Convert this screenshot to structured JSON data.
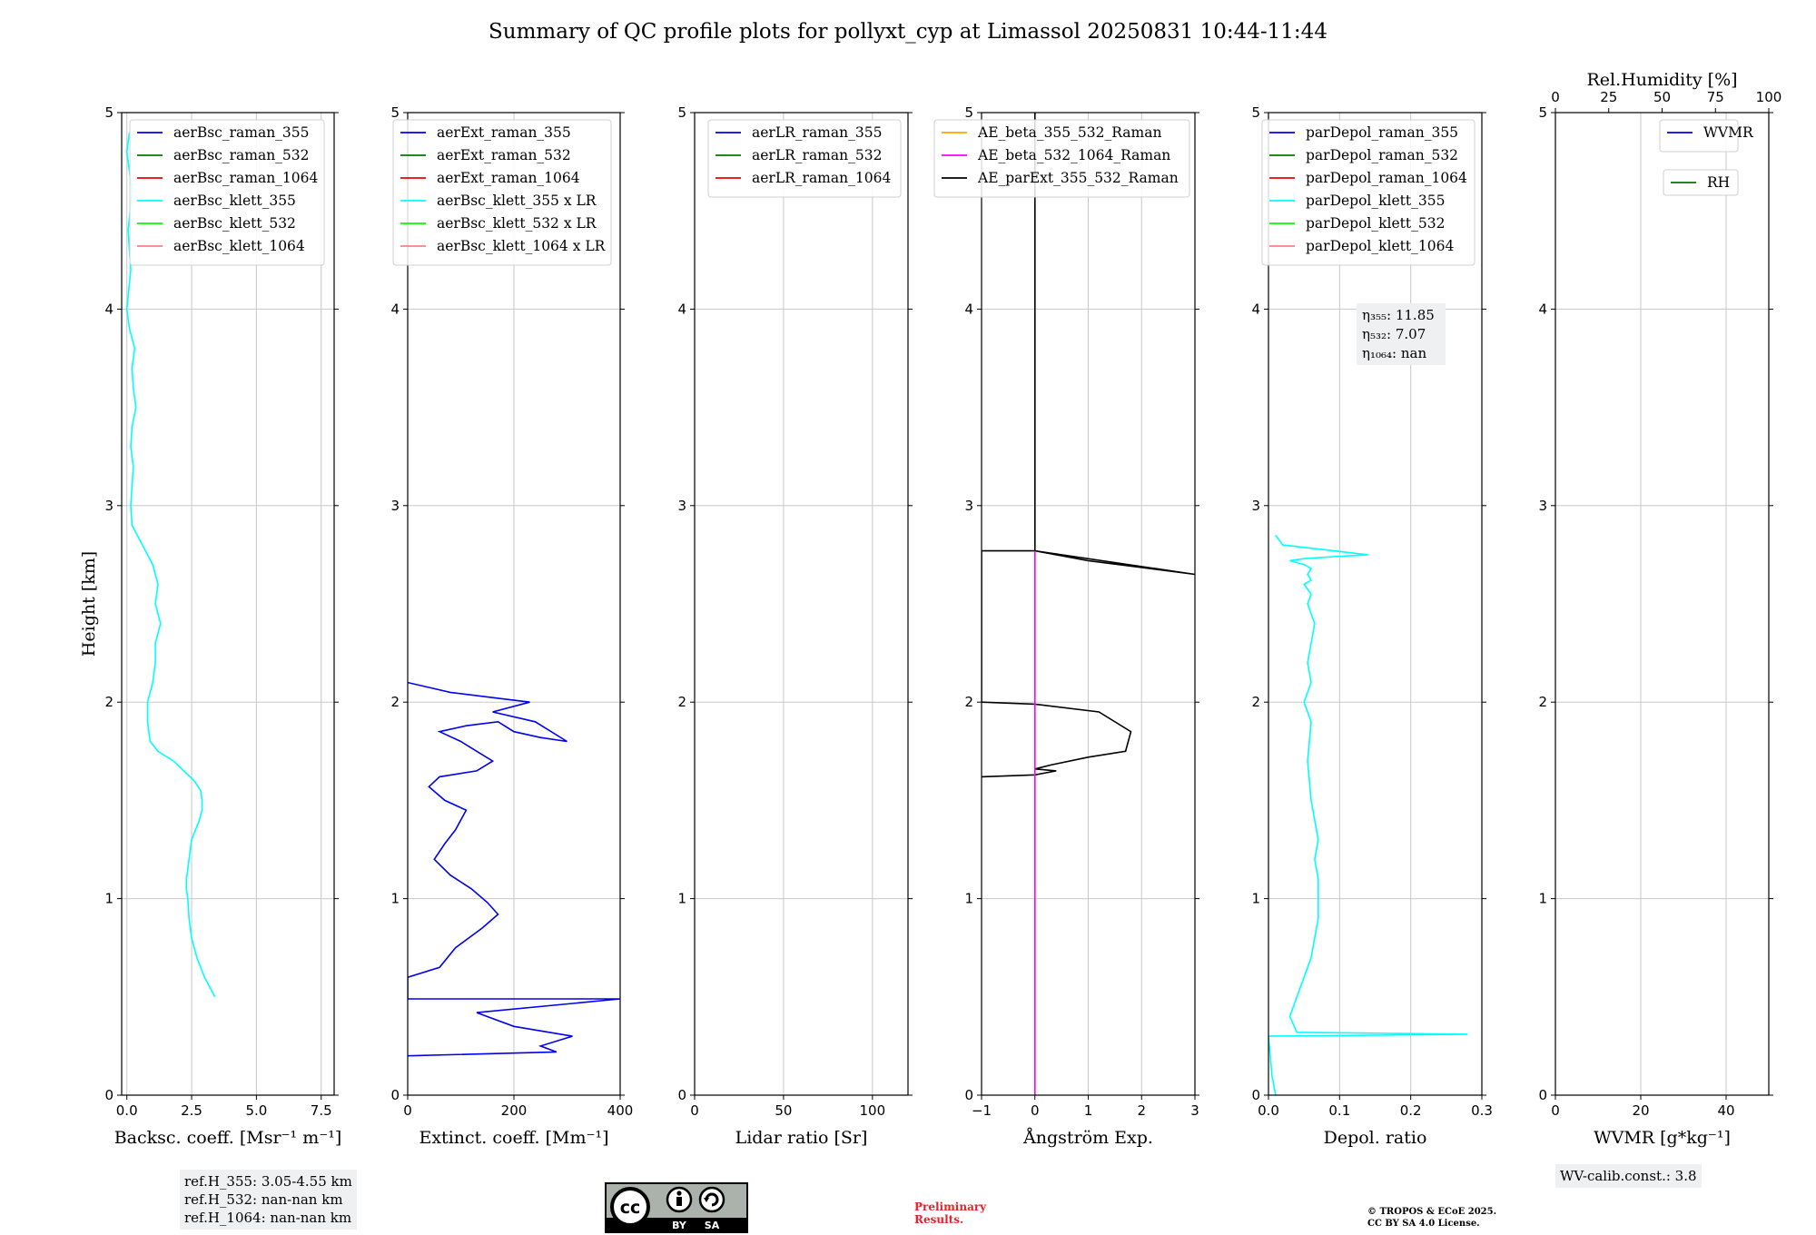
{
  "title": "Summary of QC profile plots for pollyxt_cyp at Limassol 20250831 10:44-11:44",
  "chart_data": [
    {
      "type": "line",
      "id": "bsc",
      "xlabel": "Backsc. coeff. [Msr⁻¹ m⁻¹]",
      "ylabel": "Height [km]",
      "xlim": [
        -0.2,
        8.0
      ],
      "ylim": [
        0,
        5
      ],
      "xticks": [
        0,
        2.5,
        5,
        7.5
      ],
      "xtick_labels": [
        "0.0",
        "2.5",
        "5.0",
        "7.5"
      ],
      "yticks": [
        0,
        1,
        2,
        3,
        4,
        5
      ],
      "ytick_labels": [
        "0",
        "1",
        "2",
        "3",
        "4",
        "5"
      ],
      "grid": true,
      "legend": [
        "aerBsc_raman_355",
        "aerBsc_raman_532",
        "aerBsc_raman_1064",
        "aerBsc_klett_355",
        "aerBsc_klett_532",
        "aerBsc_klett_1064"
      ],
      "series": [
        {
          "name": "aerBsc_klett_355",
          "color": "#00ffff",
          "x": [
            3.4,
            3.0,
            2.7,
            2.5,
            2.4,
            2.35,
            2.3,
            2.3,
            2.35,
            2.4,
            2.5,
            2.8,
            2.9,
            2.9,
            2.85,
            2.6,
            2.2,
            1.8,
            1.2,
            0.9,
            0.8,
            0.8,
            0.9,
            1.0,
            1.1,
            1.1,
            1.3,
            1.1,
            1.2,
            1.1,
            1.0,
            0.6,
            0.2,
            0.15,
            0.2,
            0.25,
            0.15,
            0.2,
            0.35,
            0.25,
            0.2,
            0.3,
            0.1,
            0.0,
            0.15,
            0.05,
            0.2,
            0.0,
            0.1
          ],
          "y": [
            0.5,
            0.6,
            0.7,
            0.8,
            0.9,
            1.0,
            1.05,
            1.1,
            1.15,
            1.2,
            1.3,
            1.4,
            1.45,
            1.5,
            1.55,
            1.6,
            1.65,
            1.7,
            1.75,
            1.8,
            1.9,
            2.0,
            2.05,
            2.1,
            2.2,
            2.3,
            2.4,
            2.5,
            2.6,
            2.65,
            2.7,
            2.8,
            2.9,
            3.0,
            3.1,
            3.2,
            3.3,
            3.4,
            3.5,
            3.6,
            3.7,
            3.8,
            3.9,
            4.0,
            4.2,
            4.4,
            4.6,
            4.8,
            4.9
          ]
        }
      ]
    },
    {
      "type": "line",
      "id": "ext",
      "xlabel": "Extinct. coeff. [Mm⁻¹]",
      "xlim": [
        0,
        400
      ],
      "ylim": [
        0,
        5
      ],
      "xticks": [
        0,
        200,
        400
      ],
      "xtick_labels": [
        "0",
        "200",
        "400"
      ],
      "yticks": [
        0,
        1,
        2,
        3,
        4,
        5
      ],
      "ytick_labels": [
        "0",
        "1",
        "2",
        "3",
        "4",
        "5"
      ],
      "grid": true,
      "legend": [
        "aerExt_raman_355",
        "aerExt_raman_532",
        "aerExt_raman_1064",
        "aerBsc_klett_355 x LR",
        "aerBsc_klett_532 x LR",
        "aerBsc_klett_1064 x LR"
      ],
      "series": [
        {
          "name": "aerExt_raman_355",
          "color": "#0000ee",
          "x": [
            0,
            280,
            250,
            310,
            200,
            130,
            400,
            0,
            0,
            60,
            90,
            140,
            170,
            150,
            120,
            80,
            50,
            70,
            90,
            110,
            70,
            40,
            60,
            130,
            160,
            130,
            100,
            60,
            110,
            170,
            200,
            250,
            300,
            240,
            160,
            230,
            170,
            80,
            0
          ],
          "y": [
            0.2,
            0.22,
            0.25,
            0.3,
            0.35,
            0.42,
            0.49,
            0.49,
            0.6,
            0.65,
            0.75,
            0.85,
            0.92,
            0.98,
            1.05,
            1.12,
            1.2,
            1.28,
            1.35,
            1.45,
            1.5,
            1.57,
            1.62,
            1.65,
            1.7,
            1.75,
            1.8,
            1.85,
            1.88,
            1.9,
            1.85,
            1.82,
            1.8,
            1.9,
            1.95,
            2.0,
            2.02,
            2.05,
            2.1
          ]
        }
      ]
    },
    {
      "type": "line",
      "id": "lr",
      "xlabel": "Lidar ratio [Sr]",
      "xlim": [
        0,
        120
      ],
      "ylim": [
        0,
        5
      ],
      "xticks": [
        0,
        50,
        100
      ],
      "xtick_labels": [
        "0",
        "50",
        "100"
      ],
      "yticks": [
        0,
        1,
        2,
        3,
        4,
        5
      ],
      "ytick_labels": [
        "0",
        "1",
        "2",
        "3",
        "4",
        "5"
      ],
      "grid": true,
      "legend": [
        "aerLR_raman_355",
        "aerLR_raman_532",
        "aerLR_raman_1064"
      ],
      "series": []
    },
    {
      "type": "line",
      "id": "ae",
      "xlabel": "Ångström Exp.",
      "xlim": [
        -1,
        3
      ],
      "ylim": [
        0,
        5
      ],
      "xticks": [
        -1,
        0,
        1,
        2,
        3
      ],
      "xtick_labels": [
        "−1",
        "0",
        "1",
        "2",
        "3"
      ],
      "yticks": [
        0,
        1,
        2,
        3,
        4,
        5
      ],
      "ytick_labels": [
        "0",
        "1",
        "2",
        "3",
        "4",
        "5"
      ],
      "grid": true,
      "legend": [
        "AE_beta_355_532_Raman",
        "AE_beta_532_1064_Raman",
        "AE_parExt_355_532_Raman"
      ],
      "series": [
        {
          "name": "AE_parExt_355_532_Raman",
          "color": "#000000",
          "x": [
            0,
            0,
            3.0,
            1.0,
            0.0,
            -1.0,
            -1.0,
            0.0,
            1.2,
            1.8,
            1.7,
            1.0,
            0.3,
            0.0,
            0.4,
            0.0,
            -1.0
          ],
          "y": [
            5.0,
            2.77,
            2.65,
            2.72,
            2.77,
            2.77,
            2.0,
            1.99,
            1.95,
            1.85,
            1.75,
            1.72,
            1.68,
            1.66,
            1.65,
            1.63,
            1.62
          ]
        },
        {
          "name": "AE_beta_532_1064_Raman",
          "color": "#ff00ff",
          "x": [
            0,
            0
          ],
          "y": [
            0,
            2.77
          ]
        }
      ]
    },
    {
      "type": "line",
      "id": "dep",
      "xlabel": "Depol. ratio",
      "xlim": [
        0,
        0.3
      ],
      "ylim": [
        0,
        5
      ],
      "xticks": [
        0,
        0.1,
        0.2,
        0.3
      ],
      "xtick_labels": [
        "0.0",
        "0.1",
        "0.2",
        "0.3"
      ],
      "yticks": [
        0,
        1,
        2,
        3,
        4,
        5
      ],
      "ytick_labels": [
        "0",
        "1",
        "2",
        "3",
        "4",
        "5"
      ],
      "grid": true,
      "legend": [
        "parDepol_raman_355",
        "parDepol_raman_532",
        "parDepol_raman_1064",
        "parDepol_klett_355",
        "parDepol_klett_532",
        "parDepol_klett_1064"
      ],
      "annotation": [
        "η₃₅₅: 11.85",
        "η₅₃₂: 7.07",
        "η₁₀₆₄: nan"
      ],
      "series": [
        {
          "name": "parDepol_klett_355",
          "color": "#00ffff",
          "x": [
            0.01,
            0.005,
            0.0,
            0.28,
            0.04,
            0.03,
            0.04,
            0.06,
            0.07,
            0.07,
            0.065,
            0.07,
            0.06,
            0.055,
            0.06,
            0.05,
            0.06,
            0.055,
            0.065,
            0.055,
            0.06,
            0.05,
            0.06,
            0.055,
            0.06,
            0.05,
            0.03,
            0.05,
            0.09,
            0.14,
            0.02,
            0.01
          ],
          "y": [
            0.0,
            0.1,
            0.3,
            0.31,
            0.32,
            0.4,
            0.5,
            0.7,
            0.9,
            1.1,
            1.2,
            1.3,
            1.5,
            1.7,
            1.9,
            2.0,
            2.1,
            2.2,
            2.4,
            2.5,
            2.55,
            2.6,
            2.62,
            2.65,
            2.68,
            2.7,
            2.72,
            2.73,
            2.74,
            2.75,
            2.8,
            2.85
          ]
        }
      ]
    },
    {
      "type": "line",
      "id": "wv",
      "xlabel": "WVMR [g*kg⁻¹]",
      "x2label": "Rel.Humidity [%]",
      "xlim": [
        0,
        50
      ],
      "x2lim": [
        0,
        100
      ],
      "ylim": [
        0,
        5
      ],
      "xticks": [
        0,
        20,
        40
      ],
      "xtick_labels": [
        "0",
        "20",
        "40"
      ],
      "x2ticks": [
        0,
        25,
        50,
        75,
        100
      ],
      "x2tick_labels": [
        "0",
        "25",
        "50",
        "75",
        "100"
      ],
      "yticks": [
        0,
        1,
        2,
        3,
        4,
        5
      ],
      "ytick_labels": [
        "0",
        "1",
        "2",
        "3",
        "4",
        "5"
      ],
      "grid": true,
      "legend": [
        "WVMR"
      ],
      "legend2": [
        "RH"
      ],
      "series": []
    }
  ],
  "ref_heights": [
    "ref.H_355: 3.05-4.55 km",
    "ref.H_532: nan-nan km",
    "ref.H_1064: nan-nan km"
  ],
  "wv_calib": "WV-calib.const.: 3.8",
  "preliminary": [
    "Preliminary",
    "Results."
  ],
  "copyright": [
    "© TROPOS & ECoE 2025.",
    "CC BY SA 4.0 License."
  ],
  "license_badge": {
    "left": "BY",
    "right": "SA"
  },
  "colors": {
    "raman_355": "#0000ee",
    "raman_532": "#007a00",
    "raman_1064": "#ee0000",
    "klett_355": "#00ffff",
    "klett_532": "#00ff00",
    "klett_1064": "#ff8080",
    "ae_355_532": "#ffa500",
    "ae_532_1064": "#ff00ff",
    "ae_parext": "#000000"
  }
}
